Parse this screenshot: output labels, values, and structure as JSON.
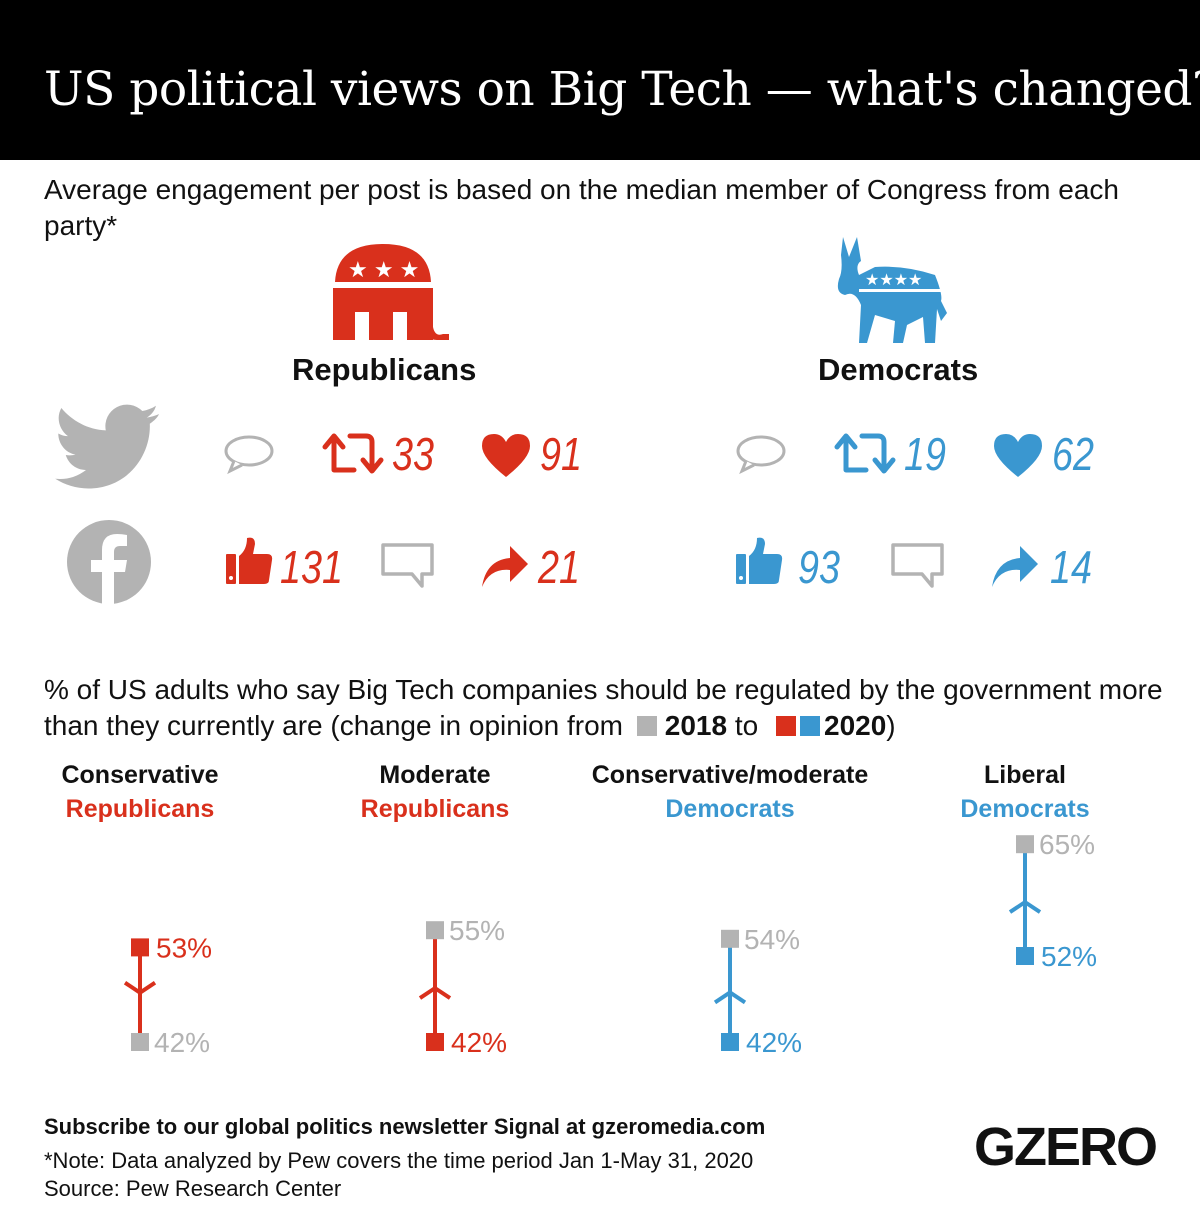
{
  "title": "US political views on Big Tech — what's changed?",
  "engagement": {
    "subtitle": "Average engagement per post is based on the median member of Congress from each party*",
    "parties": [
      {
        "name": "Republicans",
        "color": "#d9301c",
        "twitter": {
          "retweets": "33",
          "likes": "91"
        },
        "facebook": {
          "likes": "131",
          "shares": "21"
        }
      },
      {
        "name": "Democrats",
        "color": "#3a97d0",
        "twitter": {
          "retweets": "19",
          "likes": "62"
        },
        "facebook": {
          "likes": "93",
          "shares": "14"
        }
      }
    ],
    "icons": {
      "twitter": "twitter-bird-icon",
      "facebook": "facebook-icon",
      "comment": "speech-bubble-icon",
      "retweet": "retweet-icon",
      "like": "heart-icon",
      "thumb": "thumbs-up-icon",
      "share": "share-arrow-icon"
    }
  },
  "regulation": {
    "subtitle_part1": "% of US adults who say Big Tech companies should be regulated by the government more than they currently are (change in opinion from ",
    "year1": "2018",
    "to": " to ",
    "year2": "2020",
    "close": ")"
  },
  "chart_data": {
    "type": "dumbbell",
    "unit": "%",
    "categories": [
      {
        "line1": "Conservative",
        "line2": "Republicans",
        "color": "#d9301c",
        "y2018": 42,
        "y2020": 53
      },
      {
        "line1": "Moderate",
        "line2": "Republicans",
        "color": "#d9301c",
        "y2018": 55,
        "y2020": 42
      },
      {
        "line1": "Conservative/moderate",
        "line2": "Democrats",
        "color": "#3a97d0",
        "y2018": 54,
        "y2020": 42
      },
      {
        "line1": "Liberal",
        "line2": "Democrats",
        "color": "#3a97d0",
        "y2018": 65,
        "y2020": 52
      }
    ],
    "color_2018": "#b3b3b3"
  },
  "footer": {
    "subscribe": "Subscribe to our global politics newsletter Signal at gzeromedia.com",
    "note": "*Note: Data analyzed by Pew covers the time period Jan 1-May 31, 2020",
    "source": "Source: Pew Research Center",
    "logo": "GZERO"
  }
}
